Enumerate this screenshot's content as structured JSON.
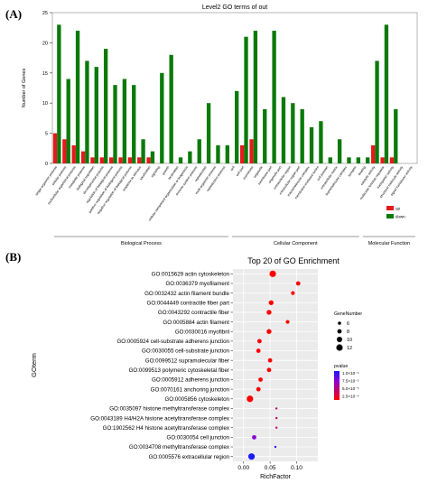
{
  "panels": {
    "a": "(A)",
    "b": "(B)"
  },
  "chart_data": [
    {
      "type": "bar",
      "title": "Level2 GO terms of out",
      "ylabel": "Number of Genes",
      "ylim": [
        0,
        25
      ],
      "yticks": [
        0,
        5,
        10,
        15,
        20,
        25
      ],
      "categories": [
        "single-organism process",
        "cellular process",
        "multicellular organismal process",
        "metabolic process",
        "biological regulation",
        "developmental process",
        "regulation of biological process",
        "positive regulation of biological process",
        "negative regulation of biological process",
        "response to stimulus",
        "localization",
        "signaling",
        "growth",
        "locomotion",
        "cellular component organization or biogenesis",
        "immune system process",
        "reproduction",
        "multi-organism process",
        "reproductive process",
        "cell",
        "cell part",
        "membrane",
        "organelle",
        "membrane part",
        "organelle part",
        "extracellular region",
        "extracellular region part",
        "macromolecular complex",
        "membrane-enclosed lumen",
        "cell junction",
        "extracellular matrix",
        "supramolecular complex",
        "synapse",
        "binding",
        "catalytic activity",
        "molecular function regulator",
        "transporter activity",
        "structural molecule activity",
        "signal transducer activity"
      ],
      "series": [
        {
          "name": "up",
          "color": "#e41a1c",
          "values": [
            5,
            4,
            3,
            2,
            1,
            1,
            1,
            1,
            1,
            1,
            1,
            0,
            0,
            0,
            0,
            0,
            0,
            0,
            0,
            0,
            3,
            4,
            0,
            0,
            0,
            0,
            0,
            0,
            0,
            0,
            0,
            0,
            0,
            0,
            3,
            1,
            1,
            0,
            0
          ]
        },
        {
          "name": "down",
          "color": "#0a7a0a",
          "values": [
            23,
            14,
            22,
            17,
            16,
            19,
            13,
            14,
            13,
            4,
            2,
            15,
            18,
            1,
            2,
            4,
            10,
            3,
            3,
            12,
            21,
            22,
            9,
            22,
            11,
            10,
            9,
            6,
            7,
            1,
            4,
            1,
            1,
            1,
            17,
            23,
            9,
            0,
            0
          ]
        }
      ],
      "groups": [
        {
          "label": "Biological Process",
          "from": 0,
          "to": 18
        },
        {
          "label": "Cellular Component",
          "from": 19,
          "to": 32
        },
        {
          "label": "Molecular Function",
          "from": 33,
          "to": 38
        }
      ],
      "legend": "right"
    },
    {
      "type": "scatter",
      "title": "Top 20 of GO Enrichment",
      "xlabel": "RichFactor",
      "ylabel": "GOterm",
      "xlim": [
        -0.02,
        0.14
      ],
      "xticks": [
        0.0,
        0.05,
        0.1
      ],
      "xtick_labels": [
        "0.00",
        "0.05",
        "0.10"
      ],
      "terms": [
        "GO:0015629 actin cytoskeleton",
        "GO:0036379 myofilament",
        "GO:0032432 actin filament bundle",
        "GO:0044449 contractile fiber part",
        "GO:0043292 contractile fiber",
        "GO:0005884 actin filament",
        "GO:0030016 myofibril",
        "GO:0005924 cell-substrate adherens junction",
        "GO:0030055 cell-substrate junction",
        "GO:0099512 supramolecular fiber",
        "GO:0099513 polymeric cytoskeletal fiber",
        "GO:0005912 adherens junction",
        "GO:0070161 anchoring junction",
        "GO:0005856 cytoskeleton",
        "GO:0035097 histone methyltransferase complex",
        "GO:0043189 H4/H2A histone acetyltransferase complex",
        "GO:1902562 H4 histone acetyltransferase complex",
        "GO:0030054 cell junction",
        "GO:0034708 methyltransferase complex",
        "GO:0005576 extracellular region"
      ],
      "rich_factor": [
        0.055,
        0.103,
        0.093,
        0.052,
        0.048,
        0.083,
        0.048,
        0.03,
        0.028,
        0.05,
        0.048,
        0.032,
        0.028,
        0.012,
        0.062,
        0.062,
        0.062,
        0.02,
        0.06,
        0.015
      ],
      "gene_number": [
        12,
        8,
        7,
        9,
        9,
        7,
        9,
        8,
        8,
        8,
        8,
        8,
        8,
        12,
        4,
        4,
        4,
        8,
        4,
        12
      ],
      "pvalue": [
        2e-06,
        5e-06,
        4e-06,
        5e-06,
        5e-06,
        6e-06,
        5e-06,
        7e-06,
        7e-06,
        5e-06,
        5e-06,
        8e-06,
        8e-06,
        6e-06,
        4.5e-05,
        4.8e-05,
        4.8e-05,
        7.5e-05,
        9.5e-05,
        0.000105
      ],
      "size_legend": {
        "title": "GeneNumber",
        "labels": [
          "6",
          "8",
          "10",
          "12"
        ],
        "values": [
          6,
          8,
          10,
          12
        ]
      },
      "color_legend": {
        "title": "pvalue",
        "labels": [
          "1.0×10⁻⁴",
          "7.5×10⁻⁵",
          "5.0×10⁻⁵",
          "2.5×10⁻⁵"
        ],
        "colors": [
          "#1a1aff",
          "#8a00d4",
          "#c0006a",
          "#ff0000"
        ]
      },
      "grid": true
    }
  ]
}
